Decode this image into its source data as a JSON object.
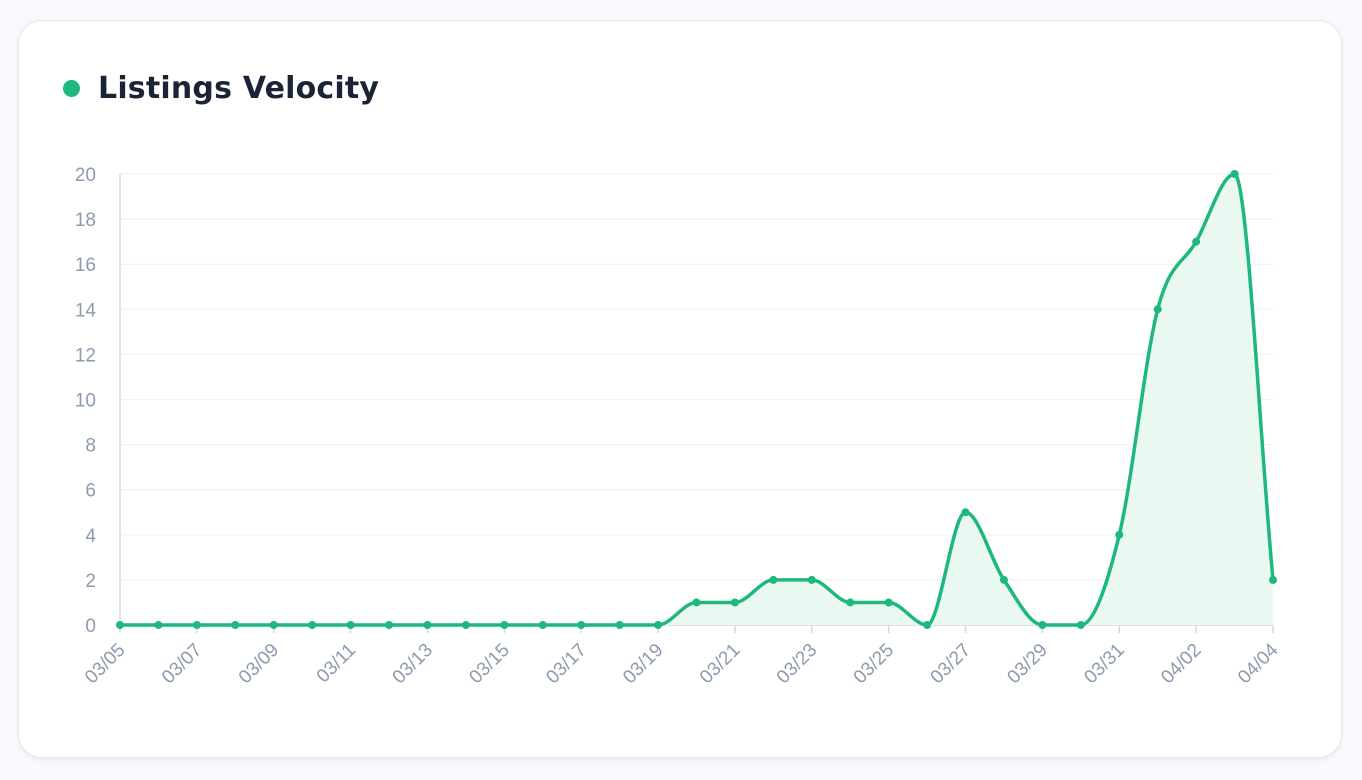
{
  "card": {
    "title": "Listings Velocity"
  },
  "colors": {
    "accent": "#1db87b",
    "area_fill": "#e9f8f0",
    "grid": "#eef1f5",
    "axis": "#d3d9e2",
    "tick_text": "#8e9ab0",
    "title_text": "#1b2336"
  },
  "chart_data": {
    "type": "area",
    "x": [
      "03/05",
      "03/06",
      "03/07",
      "03/08",
      "03/09",
      "03/10",
      "03/11",
      "03/12",
      "03/13",
      "03/14",
      "03/15",
      "03/16",
      "03/17",
      "03/18",
      "03/19",
      "03/20",
      "03/21",
      "03/22",
      "03/23",
      "03/24",
      "03/25",
      "03/26",
      "03/27",
      "03/28",
      "03/29",
      "03/30",
      "03/31",
      "04/01",
      "04/02",
      "04/03",
      "04/04"
    ],
    "x_tick_labels": [
      "03/05",
      "03/07",
      "03/09",
      "03/11",
      "03/13",
      "03/15",
      "03/17",
      "03/19",
      "03/21",
      "03/23",
      "03/25",
      "03/27",
      "03/29",
      "03/31",
      "04/02",
      "04/04"
    ],
    "series": [
      {
        "values": [
          0,
          0,
          0,
          0,
          0,
          0,
          0,
          0,
          0,
          0,
          0,
          0,
          0,
          0,
          0,
          1,
          1,
          2,
          2,
          1,
          1,
          0,
          5,
          2,
          0,
          0,
          4,
          14,
          17,
          20,
          2
        ]
      }
    ],
    "ylim": [
      0,
      20
    ],
    "y_ticks": [
      0,
      2,
      4,
      6,
      8,
      10,
      12,
      14,
      16,
      18,
      20
    ],
    "grid": true,
    "legend": "none"
  }
}
